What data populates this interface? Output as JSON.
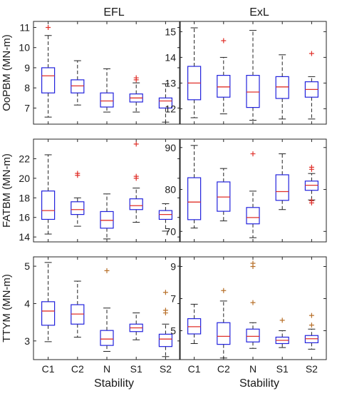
{
  "colors": {
    "box": "#2222dd",
    "median": "#e0302a",
    "whisker": "#222222",
    "outlier_main": "#e0302a",
    "outlier_alt": "#b8702a",
    "frame": "#262626"
  },
  "column_titles": [
    "EFL",
    "ExL"
  ],
  "xlabel": "Stability",
  "chart_data": [
    {
      "type": "box",
      "panel": "OoPBM-EFL",
      "title": "EFL",
      "ylabel": "OoPBM (MN-m)",
      "xlabel": "",
      "categories": [
        "C1",
        "C2",
        "N",
        "S1",
        "S2"
      ],
      "ylim": [
        6.2,
        11.3
      ],
      "yticks": [
        7,
        8,
        9,
        10,
        11
      ],
      "tick_labels": [
        "7",
        "8",
        "9",
        "10",
        "11"
      ],
      "boxes": [
        {
          "min": 6.55,
          "q1": 7.75,
          "median": 8.6,
          "q3": 9.0,
          "max": 10.6,
          "outliers": [
            11.0
          ]
        },
        {
          "min": 7.15,
          "q1": 7.75,
          "median": 8.1,
          "q3": 8.4,
          "max": 9.35,
          "outliers": []
        },
        {
          "min": 6.8,
          "q1": 7.05,
          "median": 7.35,
          "q3": 7.75,
          "max": 8.95,
          "outliers": []
        },
        {
          "min": 6.8,
          "q1": 7.3,
          "median": 7.5,
          "q3": 7.7,
          "max": 8.25,
          "outliers": [
            8.4,
            8.5
          ]
        },
        {
          "min": 6.3,
          "q1": 7.0,
          "median": 7.35,
          "q3": 7.5,
          "max": 8.2,
          "outliers": []
        }
      ]
    },
    {
      "type": "box",
      "panel": "OoPBM-ExL",
      "title": "ExL",
      "ylabel": "",
      "xlabel": "",
      "categories": [
        "C1",
        "C2",
        "N",
        "S1",
        "S2"
      ],
      "ylim": [
        11.4,
        15.4
      ],
      "yticks": [
        12,
        13,
        14,
        15
      ],
      "tick_labels": [
        "12",
        "13",
        "14",
        "15"
      ],
      "boxes": [
        {
          "min": 11.65,
          "q1": 12.35,
          "median": 13.0,
          "q3": 13.65,
          "max": 15.15,
          "outliers": []
        },
        {
          "min": 11.8,
          "q1": 12.45,
          "median": 12.85,
          "q3": 13.3,
          "max": 14.0,
          "outliers": [
            14.65
          ]
        },
        {
          "min": 11.55,
          "q1": 12.05,
          "median": 12.65,
          "q3": 13.3,
          "max": 15.05,
          "outliers": []
        },
        {
          "min": 11.6,
          "q1": 12.4,
          "median": 12.85,
          "q3": 13.25,
          "max": 14.1,
          "outliers": []
        },
        {
          "min": 11.6,
          "q1": 12.45,
          "median": 12.75,
          "q3": 13.05,
          "max": 13.25,
          "outliers": [
            14.15
          ]
        }
      ]
    },
    {
      "type": "box",
      "panel": "FATBM-EFL",
      "title": "",
      "ylabel": "FATBM (MN-m)",
      "xlabel": "",
      "categories": [
        "C1",
        "C2",
        "N",
        "S1",
        "S2"
      ],
      "ylim": [
        13.5,
        24.0
      ],
      "yticks": [
        14,
        16,
        18,
        20,
        22
      ],
      "tick_labels": [
        "14",
        "16",
        "18",
        "20",
        "22"
      ],
      "boxes": [
        {
          "min": 14.3,
          "q1": 15.8,
          "median": 16.7,
          "q3": 18.7,
          "max": 22.4,
          "outliers": []
        },
        {
          "min": 15.1,
          "q1": 16.3,
          "median": 16.8,
          "q3": 17.6,
          "max": 18.0,
          "outliers": [
            20.3,
            20.5
          ]
        },
        {
          "min": 13.8,
          "q1": 14.9,
          "median": 15.7,
          "q3": 16.6,
          "max": 18.4,
          "outliers": []
        },
        {
          "min": 15.5,
          "q1": 16.8,
          "median": 17.2,
          "q3": 17.9,
          "max": 19.0,
          "outliers": [
            20.0,
            20.2,
            23.5
          ]
        },
        {
          "min": 14.6,
          "q1": 15.8,
          "median": 16.3,
          "q3": 16.7,
          "max": 17.4,
          "outliers": []
        }
      ]
    },
    {
      "type": "box",
      "panel": "FATBM-ExL",
      "title": "",
      "ylabel": "",
      "xlabel": "",
      "categories": [
        "C1",
        "C2",
        "N",
        "S1",
        "S2"
      ],
      "ylim": [
        67.5,
        92.0
      ],
      "yticks": [
        70,
        80,
        90
      ],
      "tick_labels": [
        "70",
        "80",
        "90"
      ],
      "boxes": [
        {
          "min": 70.8,
          "q1": 72.8,
          "median": 77.0,
          "q3": 82.8,
          "max": 90.5,
          "outliers": []
        },
        {
          "min": 72.5,
          "q1": 74.8,
          "median": 78.2,
          "q3": 81.8,
          "max": 85.0,
          "outliers": []
        },
        {
          "min": 68.5,
          "q1": 71.8,
          "median": 73.3,
          "q3": 75.7,
          "max": 79.6,
          "outliers": [
            88.5
          ]
        },
        {
          "min": 75.2,
          "q1": 77.4,
          "median": 79.5,
          "q3": 83.5,
          "max": 88.5,
          "outliers": []
        },
        {
          "min": 77.5,
          "q1": 79.8,
          "median": 81.0,
          "q3": 82.0,
          "max": 83.8,
          "outliers": [
            76.8,
            77.3,
            84.8,
            85.3
          ]
        }
      ]
    },
    {
      "type": "box",
      "panel": "TTYM-EFL",
      "title": "",
      "ylabel": "TTYM (MN-m)",
      "xlabel": "Stability",
      "categories": [
        "C1",
        "C2",
        "N",
        "S1",
        "S2"
      ],
      "ylim": [
        2.5,
        5.25
      ],
      "yticks": [
        3,
        4,
        5
      ],
      "tick_labels": [
        "3",
        "4",
        "5"
      ],
      "boxes": [
        {
          "min": 2.98,
          "q1": 3.42,
          "median": 3.8,
          "q3": 4.05,
          "max": 5.1,
          "outliers": []
        },
        {
          "min": 3.1,
          "q1": 3.45,
          "median": 3.72,
          "q3": 3.97,
          "max": 4.6,
          "outliers": []
        },
        {
          "min": 2.72,
          "q1": 2.88,
          "median": 3.05,
          "q3": 3.28,
          "max": 3.88,
          "outliers": [
            4.88
          ]
        },
        {
          "min": 3.03,
          "q1": 3.25,
          "median": 3.35,
          "q3": 3.45,
          "max": 3.75,
          "outliers": []
        },
        {
          "min": 2.58,
          "q1": 2.85,
          "median": 3.05,
          "q3": 3.18,
          "max": 3.45,
          "outliers": [
            3.75,
            3.82,
            4.3
          ]
        }
      ]
    },
    {
      "type": "box",
      "panel": "TTYM-ExL",
      "title": "",
      "ylabel": "",
      "xlabel": "Stability",
      "categories": [
        "C1",
        "C2",
        "N",
        "S1",
        "S2"
      ],
      "ylim": [
        3.2,
        9.6
      ],
      "yticks": [
        5,
        7,
        9
      ],
      "tick_labels": [
        "5",
        "7",
        "9"
      ],
      "boxes": [
        {
          "min": 4.2,
          "q1": 4.8,
          "median": 5.25,
          "q3": 5.75,
          "max": 6.65,
          "outliers": []
        },
        {
          "min": 3.3,
          "q1": 4.15,
          "median": 4.65,
          "q3": 5.5,
          "max": 6.85,
          "outliers": [
            7.5
          ]
        },
        {
          "min": 3.9,
          "q1": 4.3,
          "median": 4.65,
          "q3": 5.1,
          "max": 5.5,
          "outliers": [
            6.75,
            9.0,
            9.2
          ]
        },
        {
          "min": 3.95,
          "q1": 4.2,
          "median": 4.4,
          "q3": 4.6,
          "max": 5.0,
          "outliers": [
            5.65
          ]
        },
        {
          "min": 3.85,
          "q1": 4.25,
          "median": 4.5,
          "q3": 4.7,
          "max": 5.1,
          "outliers": [
            5.35,
            5.95
          ]
        }
      ]
    }
  ]
}
